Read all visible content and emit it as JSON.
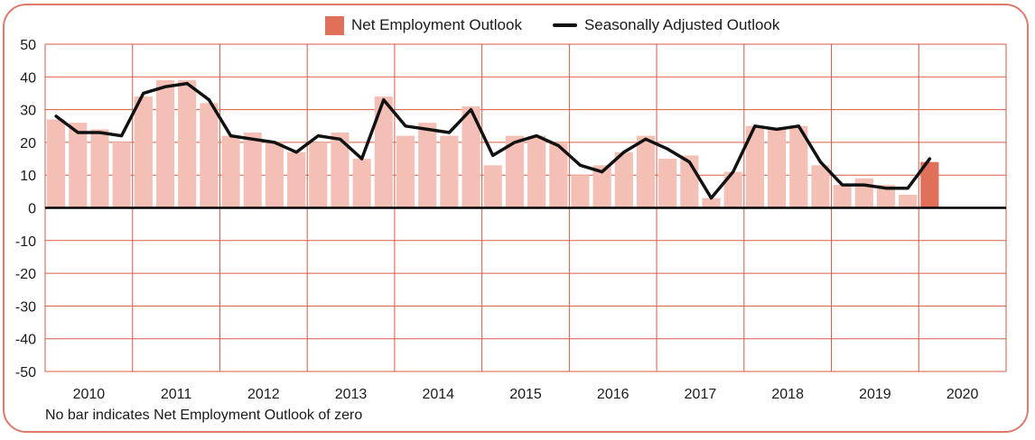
{
  "chart_data": {
    "type": "bar",
    "legend": [
      {
        "name": "Net Employment Outlook",
        "kind": "bar",
        "color": "#e0705a"
      },
      {
        "name": "Seasonally Adjusted Outlook",
        "kind": "line",
        "color": "#111111"
      }
    ],
    "years": [
      "2010",
      "2011",
      "2012",
      "2013",
      "2014",
      "2015",
      "2016",
      "2017",
      "2018",
      "2019",
      "2020"
    ],
    "quarters_per_year": 4,
    "ylim": [
      -50,
      50
    ],
    "yticks": [
      50,
      40,
      30,
      20,
      10,
      0,
      -10,
      -20,
      -30,
      -40,
      -50
    ],
    "series": [
      {
        "name": "Net Employment Outlook",
        "values": [
          27,
          26,
          24,
          20,
          34,
          39,
          39,
          32,
          22,
          23,
          20,
          17,
          20,
          23,
          15,
          34,
          22,
          26,
          22,
          31,
          13,
          22,
          22,
          20,
          10,
          13,
          17,
          22,
          15,
          16,
          3,
          11,
          25,
          24,
          25,
          13,
          7,
          9,
          7,
          4,
          14
        ],
        "colors": {
          "past": "#f4c0b6",
          "current": "#e0705a"
        }
      },
      {
        "name": "Seasonally Adjusted Outlook",
        "values": [
          28,
          23,
          23,
          22,
          35,
          37,
          38,
          33,
          22,
          21,
          20,
          17,
          22,
          21,
          15,
          33,
          25,
          24,
          23,
          30,
          16,
          20,
          22,
          19,
          13,
          11,
          17,
          21,
          18,
          14,
          3,
          11,
          25,
          24,
          25,
          14,
          7,
          7,
          6,
          6,
          15
        ]
      }
    ],
    "footnote": "No bar indicates Net Employment Outlook of zero",
    "grid": true,
    "gridColor": "#d85a46",
    "legendPosition": "top-center"
  }
}
